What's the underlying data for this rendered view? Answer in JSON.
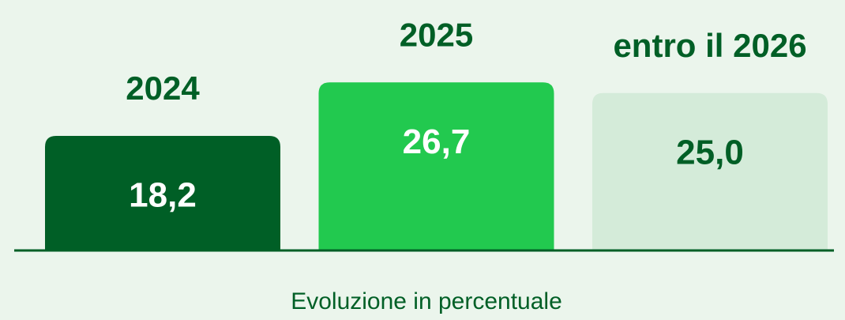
{
  "chart_data": {
    "type": "bar",
    "categories": [
      "2024",
      "2025",
      "entro il 2026"
    ],
    "values": [
      18.2,
      26.7,
      25.0
    ],
    "value_labels": [
      "18,2",
      "26,7",
      "25,0"
    ],
    "colors": [
      "#005f26",
      "#22c94f",
      "#d4ebd9"
    ],
    "value_label_colors": [
      "#ffffff",
      "#ffffff",
      "#005f26"
    ],
    "xlabel": "Evoluzione in percentuale"
  }
}
